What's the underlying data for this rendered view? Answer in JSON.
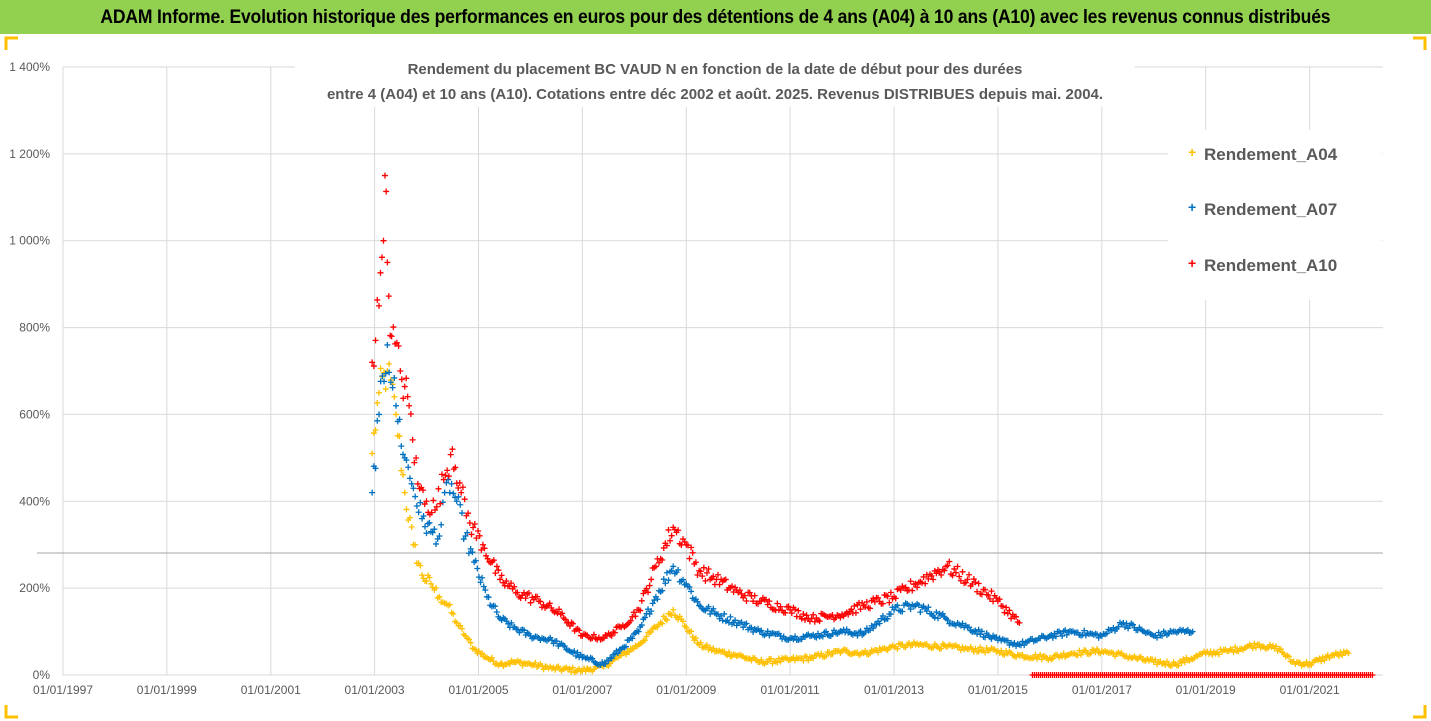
{
  "banner": {
    "title": "ADAM Informe. Evolution historique des performances en euros pour des détentions de 4 ans (A04) à 10 ans (A10) avec les revenus connus distribués"
  },
  "colors": {
    "banner_bg": "#92d050",
    "corner_accent": "#ffc000",
    "gridline": "#d9d9d9",
    "text": "#595959"
  },
  "chart_data": {
    "type": "scatter",
    "title_line1": "Rendement du placement BC VAUD N en fonction de la date de début pour des durées",
    "title_line2": "entre 4 (A04) et 10 ans (A10). Cotations entre déc 2002 et août. 2025. Revenus DISTRIBUES depuis mai. 2004.",
    "xlabel": "",
    "ylabel": "",
    "x_range": [
      "1997-01-01",
      "2022-06-01"
    ],
    "ylim": [
      0,
      1400
    ],
    "y_unit": "%",
    "y_ticks": [
      "0%",
      "200%",
      "400%",
      "600%",
      "800%",
      "1 000%",
      "1 200%",
      "1 400%"
    ],
    "y_tick_values": [
      0,
      200,
      400,
      600,
      800,
      1000,
      1200,
      1400
    ],
    "x_ticks": [
      "01/01/1997",
      "01/01/1999",
      "01/01/2001",
      "01/01/2003",
      "01/01/2005",
      "01/01/2007",
      "01/01/2009",
      "01/01/2011",
      "01/01/2013",
      "01/01/2015",
      "01/01/2017",
      "01/01/2019",
      "01/01/2021"
    ],
    "x_tick_dates": [
      "1997-01-01",
      "1999-01-01",
      "2001-01-01",
      "2003-01-01",
      "2005-01-01",
      "2007-01-01",
      "2009-01-01",
      "2011-01-01",
      "2013-01-01",
      "2015-01-01",
      "2017-01-01",
      "2019-01-01",
      "2021-01-01"
    ],
    "grid": true,
    "legend_position": "right",
    "marker": "+",
    "series": [
      {
        "name": "Rendement_A04",
        "color": "#ffc000",
        "points": [
          [
            "2002-12-15",
            510
          ],
          [
            "2003-02-01",
            650
          ],
          [
            "2003-04-01",
            700
          ],
          [
            "2003-06-01",
            600
          ],
          [
            "2003-08-01",
            420
          ],
          [
            "2003-10-01",
            300
          ],
          [
            "2003-12-01",
            230
          ],
          [
            "2004-02-01",
            210
          ],
          [
            "2004-04-01",
            180
          ],
          [
            "2004-06-01",
            160
          ],
          [
            "2004-08-01",
            120
          ],
          [
            "2004-10-01",
            90
          ],
          [
            "2004-12-01",
            60
          ],
          [
            "2005-03-01",
            40
          ],
          [
            "2005-06-01",
            25
          ],
          [
            "2005-09-01",
            30
          ],
          [
            "2006-01-01",
            25
          ],
          [
            "2006-06-01",
            15
          ],
          [
            "2007-01-01",
            10
          ],
          [
            "2007-06-01",
            20
          ],
          [
            "2007-10-01",
            45
          ],
          [
            "2008-02-01",
            70
          ],
          [
            "2008-06-01",
            110
          ],
          [
            "2008-10-01",
            150
          ],
          [
            "2009-01-01",
            110
          ],
          [
            "2009-04-01",
            70
          ],
          [
            "2009-08-01",
            55
          ],
          [
            "2010-01-01",
            45
          ],
          [
            "2010-06-01",
            30
          ],
          [
            "2011-01-01",
            35
          ],
          [
            "2011-06-01",
            40
          ],
          [
            "2012-01-01",
            55
          ],
          [
            "2012-06-01",
            50
          ],
          [
            "2013-01-01",
            65
          ],
          [
            "2013-06-01",
            70
          ],
          [
            "2014-01-01",
            65
          ],
          [
            "2014-06-01",
            60
          ],
          [
            "2015-01-01",
            55
          ],
          [
            "2015-06-01",
            45
          ],
          [
            "2016-01-01",
            40
          ],
          [
            "2016-06-01",
            50
          ],
          [
            "2017-01-01",
            55
          ],
          [
            "2017-06-01",
            45
          ],
          [
            "2018-01-01",
            30
          ],
          [
            "2018-06-01",
            25
          ],
          [
            "2019-01-01",
            50
          ],
          [
            "2019-06-01",
            55
          ],
          [
            "2020-01-01",
            70
          ],
          [
            "2020-06-01",
            60
          ],
          [
            "2020-09-01",
            30
          ],
          [
            "2021-01-01",
            25
          ],
          [
            "2021-06-01",
            45
          ],
          [
            "2021-10-01",
            50
          ]
        ]
      },
      {
        "name": "Rendement_A07",
        "color": "#0070c0",
        "points": [
          [
            "2002-12-15",
            420
          ],
          [
            "2003-02-01",
            600
          ],
          [
            "2003-04-01",
            760
          ],
          [
            "2003-06-01",
            620
          ],
          [
            "2003-08-01",
            500
          ],
          [
            "2003-10-01",
            430
          ],
          [
            "2003-12-01",
            360
          ],
          [
            "2004-02-01",
            330
          ],
          [
            "2004-04-01",
            320
          ],
          [
            "2004-06-01",
            450
          ],
          [
            "2004-08-01",
            400
          ],
          [
            "2004-10-01",
            320
          ],
          [
            "2004-12-01",
            260
          ],
          [
            "2005-03-01",
            180
          ],
          [
            "2005-06-01",
            130
          ],
          [
            "2005-09-01",
            110
          ],
          [
            "2006-01-01",
            90
          ],
          [
            "2006-06-01",
            80
          ],
          [
            "2007-01-01",
            40
          ],
          [
            "2007-06-01",
            25
          ],
          [
            "2007-10-01",
            60
          ],
          [
            "2008-02-01",
            100
          ],
          [
            "2008-06-01",
            180
          ],
          [
            "2008-10-01",
            250
          ],
          [
            "2009-01-01",
            210
          ],
          [
            "2009-04-01",
            160
          ],
          [
            "2009-08-01",
            140
          ],
          [
            "2010-01-01",
            120
          ],
          [
            "2010-06-01",
            100
          ],
          [
            "2011-01-01",
            85
          ],
          [
            "2011-06-01",
            90
          ],
          [
            "2012-01-01",
            100
          ],
          [
            "2012-06-01",
            95
          ],
          [
            "2013-01-01",
            150
          ],
          [
            "2013-06-01",
            160
          ],
          [
            "2014-01-01",
            130
          ],
          [
            "2014-06-01",
            110
          ],
          [
            "2015-01-01",
            80
          ],
          [
            "2015-06-01",
            70
          ],
          [
            "2016-01-01",
            90
          ],
          [
            "2016-06-01",
            100
          ],
          [
            "2017-01-01",
            90
          ],
          [
            "2017-06-01",
            120
          ],
          [
            "2018-01-01",
            90
          ],
          [
            "2018-06-01",
            100
          ],
          [
            "2018-10-01",
            100
          ]
        ]
      },
      {
        "name": "Rendement_A10",
        "color": "#ff0000",
        "points": [
          [
            "2002-12-15",
            720
          ],
          [
            "2003-02-01",
            850
          ],
          [
            "2003-03-15",
            1150
          ],
          [
            "2003-04-01",
            950
          ],
          [
            "2003-05-01",
            780
          ],
          [
            "2003-07-01",
            700
          ],
          [
            "2003-09-01",
            620
          ],
          [
            "2003-11-01",
            440
          ],
          [
            "2004-01-01",
            400
          ],
          [
            "2004-03-01",
            380
          ],
          [
            "2004-05-01",
            450
          ],
          [
            "2004-07-01",
            520
          ],
          [
            "2004-09-01",
            420
          ],
          [
            "2004-11-01",
            350
          ],
          [
            "2005-02-01",
            300
          ],
          [
            "2005-06-01",
            220
          ],
          [
            "2005-10-01",
            190
          ],
          [
            "2006-03-01",
            170
          ],
          [
            "2006-08-01",
            140
          ],
          [
            "2007-01-01",
            90
          ],
          [
            "2007-06-01",
            85
          ],
          [
            "2007-10-01",
            110
          ],
          [
            "2008-02-01",
            150
          ],
          [
            "2008-06-01",
            250
          ],
          [
            "2008-10-01",
            340
          ],
          [
            "2009-01-01",
            300
          ],
          [
            "2009-04-01",
            240
          ],
          [
            "2009-08-01",
            220
          ],
          [
            "2010-01-01",
            190
          ],
          [
            "2010-06-01",
            170
          ],
          [
            "2011-01-01",
            150
          ],
          [
            "2011-06-01",
            130
          ],
          [
            "2012-01-01",
            140
          ],
          [
            "2012-06-01",
            160
          ],
          [
            "2013-01-01",
            180
          ],
          [
            "2013-06-01",
            210
          ],
          [
            "2014-01-01",
            250
          ],
          [
            "2014-06-01",
            220
          ],
          [
            "2015-01-01",
            170
          ],
          [
            "2015-06-01",
            120
          ]
        ],
        "flat_segment": {
          "from": "2015-09-01",
          "to": "2022-04-01",
          "value": 0
        }
      }
    ]
  }
}
